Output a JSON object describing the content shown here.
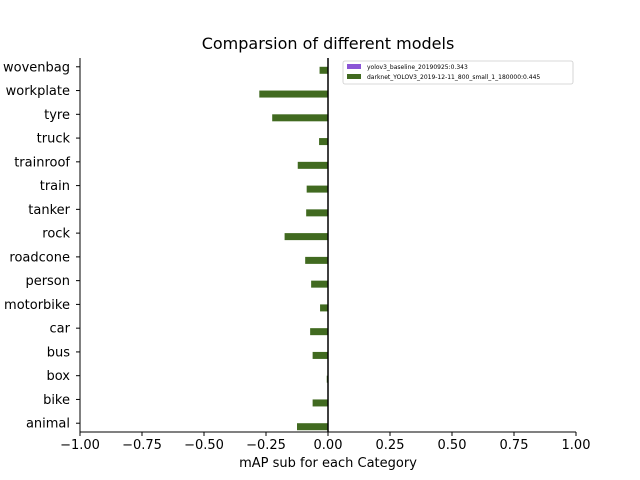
{
  "chart_data": {
    "type": "bar",
    "orientation": "horizontal",
    "title": "Comparsion of different models",
    "xlabel": "mAP sub for each Category",
    "ylabel": "",
    "xlim": [
      -1.0,
      1.0
    ],
    "xticks": [
      "−1.00",
      "−0.75",
      "−0.50",
      "−0.25",
      "0.00",
      "0.25",
      "0.50",
      "0.75",
      "1.00"
    ],
    "xtick_values": [
      -1.0,
      -0.75,
      -0.5,
      -0.25,
      0.0,
      0.25,
      0.5,
      0.75,
      1.0
    ],
    "categories": [
      "animal",
      "bike",
      "box",
      "bus",
      "car",
      "motorbike",
      "person",
      "roadcone",
      "rock",
      "tanker",
      "train",
      "trainroof",
      "truck",
      "tyre",
      "workplate",
      "wovenbag"
    ],
    "legend_position": "top-right",
    "series": [
      {
        "name": "yolov3_baseline_20190925:0.343",
        "color": "#8b55d6",
        "values": [
          0,
          0,
          0,
          0,
          0,
          0,
          0,
          0,
          0,
          0,
          0,
          0,
          0,
          0,
          0,
          0
        ]
      },
      {
        "name": "darknet_YOLOV3_2019-12-11_800_small_1_180000:0.445",
        "color": "#416a20",
        "values": [
          -0.125,
          -0.062,
          -0.005,
          -0.062,
          -0.072,
          -0.032,
          -0.068,
          -0.092,
          -0.175,
          -0.088,
          -0.086,
          -0.122,
          -0.036,
          -0.225,
          -0.277,
          -0.034
        ]
      }
    ]
  }
}
